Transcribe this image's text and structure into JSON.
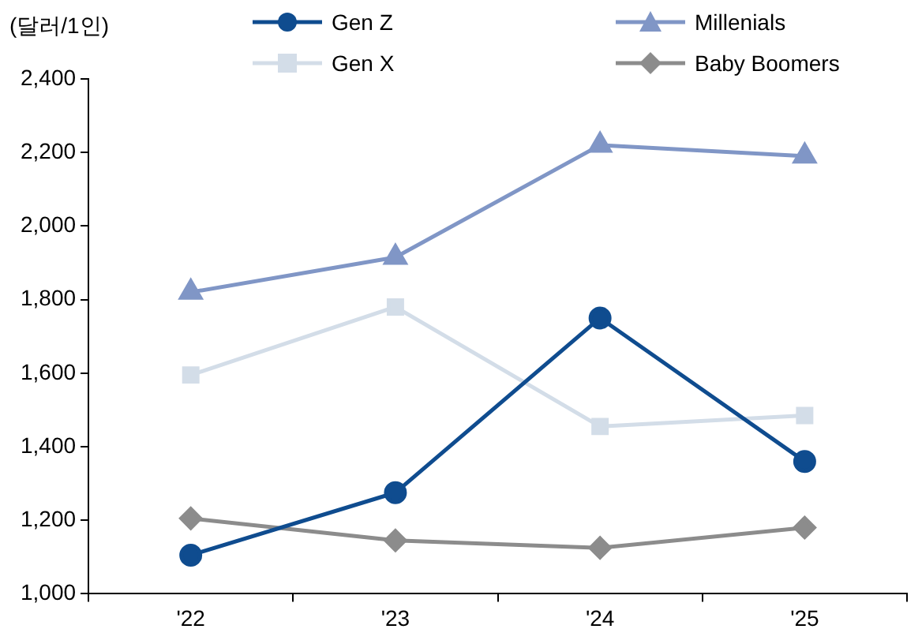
{
  "chart_data": {
    "type": "line",
    "ylabel": "(달러/1인)",
    "categories": [
      "'22",
      "'23",
      "'24",
      "'25"
    ],
    "series": [
      {
        "name": "Gen Z",
        "color": "#0f4c8f",
        "marker": "circle",
        "values": [
          1105,
          1275,
          1750,
          1360
        ]
      },
      {
        "name": "Millenials",
        "color": "#8096c6",
        "marker": "triangle",
        "values": [
          1820,
          1915,
          2220,
          2190
        ]
      },
      {
        "name": "Gen X",
        "color": "#d3dde8",
        "marker": "square",
        "values": [
          1595,
          1780,
          1455,
          1485
        ]
      },
      {
        "name": "Baby Boomers",
        "color": "#8c8c8c",
        "marker": "diamond",
        "values": [
          1205,
          1145,
          1125,
          1180
        ]
      }
    ],
    "ylim": [
      1000,
      2400
    ],
    "yticks": [
      {
        "value": 1000,
        "label": "1,000"
      },
      {
        "value": 1200,
        "label": "1,200"
      },
      {
        "value": 1400,
        "label": "1,400"
      },
      {
        "value": 1600,
        "label": "1,600"
      },
      {
        "value": 1800,
        "label": "1,800"
      },
      {
        "value": 2000,
        "label": "2,000"
      },
      {
        "value": 2200,
        "label": "2,200"
      },
      {
        "value": 2400,
        "label": "2,400"
      }
    ],
    "grid": false,
    "legend": "top",
    "line_style": "solid"
  }
}
